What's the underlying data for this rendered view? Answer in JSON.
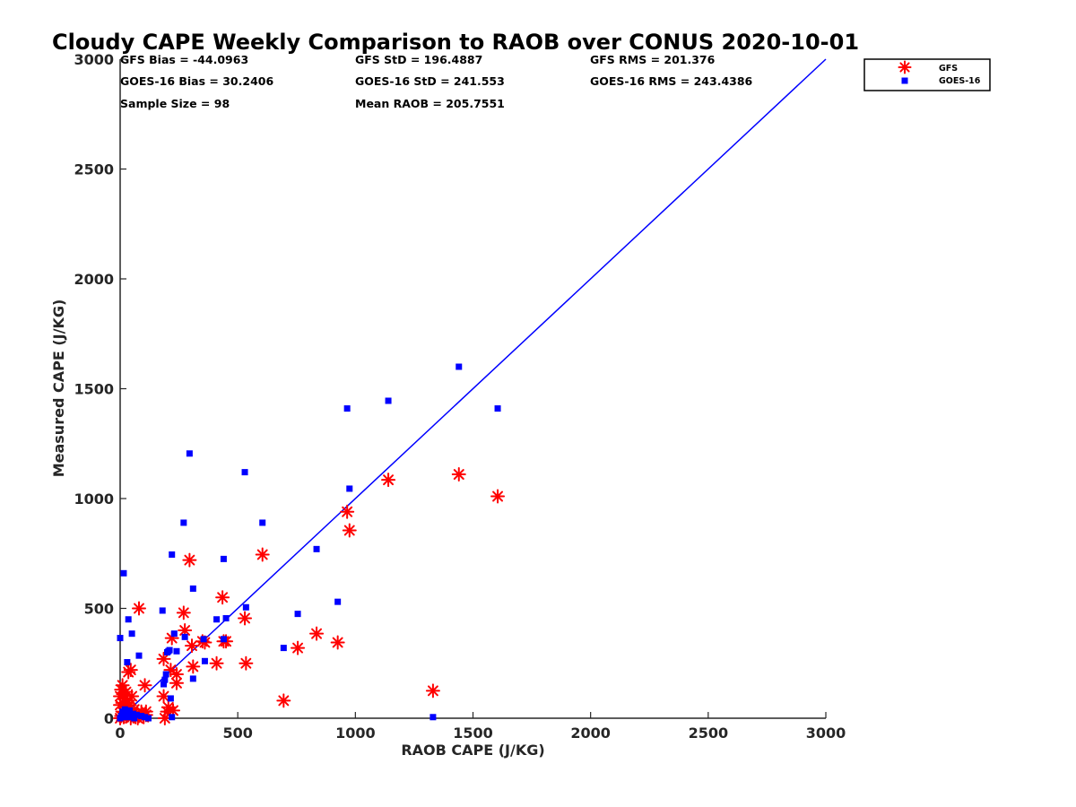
{
  "chart_data": {
    "type": "scatter",
    "title": "Cloudy CAPE Weekly Comparison to RAOB over CONUS 2020-10-01",
    "xlabel": "RAOB CAPE (J/KG)",
    "ylabel": "Measured CAPE (J/KG)",
    "xlim": [
      0,
      3000
    ],
    "ylim": [
      0,
      3000
    ],
    "xticks": [
      "0",
      "500",
      "1000",
      "1500",
      "2000",
      "2500",
      "3000"
    ],
    "yticks": [
      "0",
      "500",
      "1000",
      "1500",
      "2000",
      "2500",
      "3000"
    ],
    "grid": false,
    "legend_position": "top-right",
    "stats": [
      [
        "GFS Bias = -44.0963",
        "GFS StD = 196.4887",
        "GFS RMS = 201.376"
      ],
      [
        "GOES-16 Bias = 30.2406",
        "GOES-16 StD = 241.553",
        "GOES-16 RMS = 243.4386"
      ],
      [
        "Sample Size = 98",
        "Mean RAOB = 205.7551",
        ""
      ]
    ],
    "reference_line": {
      "x": [
        0,
        3000
      ],
      "y": [
        0,
        3000
      ],
      "color": "#0000ff"
    },
    "series": [
      {
        "name": "GFS",
        "marker": "asterisk",
        "color": "#ff0000",
        "points": [
          [
            0,
            0
          ],
          [
            5,
            10
          ],
          [
            10,
            30
          ],
          [
            15,
            5
          ],
          [
            20,
            50
          ],
          [
            25,
            15
          ],
          [
            30,
            80
          ],
          [
            35,
            20
          ],
          [
            40,
            60
          ],
          [
            45,
            0
          ],
          [
            50,
            25
          ],
          [
            55,
            10
          ],
          [
            60,
            40
          ],
          [
            65,
            5
          ],
          [
            70,
            20
          ],
          [
            75,
            0
          ],
          [
            80,
            10
          ],
          [
            90,
            30
          ],
          [
            100,
            5
          ],
          [
            110,
            15
          ],
          [
            0,
            100
          ],
          [
            5,
            130
          ],
          [
            10,
            150
          ],
          [
            15,
            110
          ],
          [
            20,
            90
          ],
          [
            25,
            120
          ],
          [
            30,
            70
          ],
          [
            35,
            210
          ],
          [
            45,
            220
          ],
          [
            50,
            100
          ],
          [
            0,
            60
          ],
          [
            10,
            70
          ],
          [
            80,
            500
          ],
          [
            105,
            150
          ],
          [
            110,
            30
          ],
          [
            185,
            270
          ],
          [
            185,
            100
          ],
          [
            190,
            0
          ],
          [
            200,
            30
          ],
          [
            205,
            50
          ],
          [
            215,
            220
          ],
          [
            220,
            365
          ],
          [
            225,
            35
          ],
          [
            240,
            160
          ],
          [
            240,
            200
          ],
          [
            270,
            480
          ],
          [
            275,
            400
          ],
          [
            295,
            720
          ],
          [
            305,
            330
          ],
          [
            310,
            235
          ],
          [
            350,
            350
          ],
          [
            360,
            345
          ],
          [
            410,
            250
          ],
          [
            435,
            550
          ],
          [
            440,
            350
          ],
          [
            450,
            350
          ],
          [
            530,
            455
          ],
          [
            535,
            250
          ],
          [
            605,
            745
          ],
          [
            695,
            80
          ],
          [
            755,
            320
          ],
          [
            835,
            385
          ],
          [
            925,
            345
          ],
          [
            965,
            940
          ],
          [
            975,
            855
          ],
          [
            1140,
            1085
          ],
          [
            1330,
            125
          ],
          [
            1440,
            1110
          ],
          [
            1605,
            1010
          ]
        ]
      },
      {
        "name": "GOES-16",
        "marker": "square",
        "color": "#0000ff",
        "points": [
          [
            0,
            365
          ],
          [
            15,
            660
          ],
          [
            30,
            255
          ],
          [
            35,
            450
          ],
          [
            50,
            385
          ],
          [
            80,
            285
          ],
          [
            0,
            0
          ],
          [
            5,
            10
          ],
          [
            10,
            30
          ],
          [
            15,
            20
          ],
          [
            20,
            40
          ],
          [
            25,
            5
          ],
          [
            30,
            25
          ],
          [
            35,
            15
          ],
          [
            40,
            35
          ],
          [
            45,
            10
          ],
          [
            50,
            5
          ],
          [
            55,
            20
          ],
          [
            60,
            0
          ],
          [
            70,
            15
          ],
          [
            90,
            10
          ],
          [
            105,
            5
          ],
          [
            120,
            0
          ],
          [
            180,
            490
          ],
          [
            185,
            155
          ],
          [
            190,
            175
          ],
          [
            195,
            200
          ],
          [
            200,
            300
          ],
          [
            205,
            305
          ],
          [
            210,
            310
          ],
          [
            215,
            90
          ],
          [
            220,
            745
          ],
          [
            220,
            5
          ],
          [
            230,
            385
          ],
          [
            240,
            305
          ],
          [
            270,
            890
          ],
          [
            275,
            370
          ],
          [
            295,
            1205
          ],
          [
            310,
            590
          ],
          [
            310,
            180
          ],
          [
            355,
            360
          ],
          [
            360,
            260
          ],
          [
            410,
            450
          ],
          [
            440,
            725
          ],
          [
            440,
            360
          ],
          [
            450,
            455
          ],
          [
            530,
            1120
          ],
          [
            535,
            505
          ],
          [
            605,
            890
          ],
          [
            695,
            320
          ],
          [
            755,
            475
          ],
          [
            835,
            770
          ],
          [
            925,
            530
          ],
          [
            965,
            1410
          ],
          [
            975,
            1045
          ],
          [
            1140,
            1445
          ],
          [
            1330,
            5
          ],
          [
            1440,
            1600
          ],
          [
            1605,
            1410
          ]
        ]
      }
    ]
  }
}
